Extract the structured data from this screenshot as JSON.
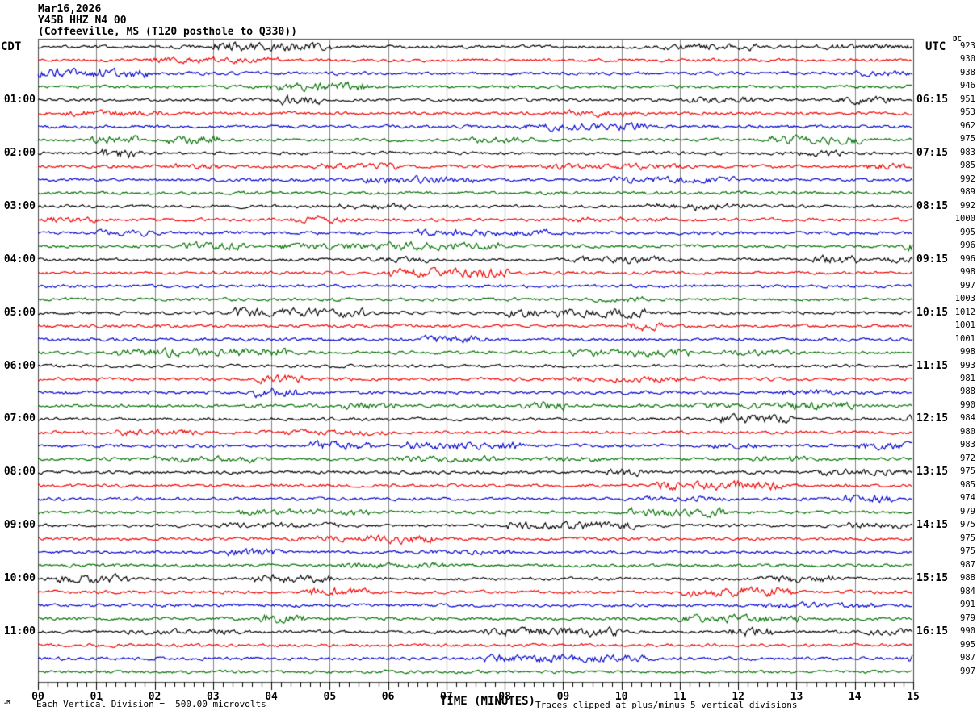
{
  "header": {
    "date": "Mar16,2026",
    "station": "Y45B HHZ N4 00",
    "description": "(Coffeeville, MS (T120 posthole to Q330))",
    "left_zone": "CDT",
    "right_zone": "UTC",
    "dc_header": "DC"
  },
  "footer": {
    "scale_note": "Each Vertical Division =  500.00 microvolts",
    "axis_label": "TIME (MINUTES)",
    "clip_note": "Traces clipped at plus/minus 5 vertical divisions",
    "watermark": ".M"
  },
  "colors": {
    "black": "#000000",
    "red": "#ee0000",
    "blue": "#0000cc",
    "green": "#007000",
    "grid": "#848484",
    "border": "#4a4a4a"
  },
  "chart_data": {
    "type": "line",
    "subtype": "helicorder-seismogram",
    "title": "Y45B HHZ N4 00 (Coffeeville, MS (T120 posthole to Q330)) Mar16,2026",
    "xlabel": "TIME (MINUTES)",
    "x_range": [
      0,
      15
    ],
    "x_tick_labels": [
      "00",
      "01",
      "02",
      "03",
      "04",
      "05",
      "06",
      "07",
      "08",
      "09",
      "10",
      "11",
      "12",
      "13",
      "14",
      "15"
    ],
    "minor_ticks_per_minute": 6,
    "row_duration_minutes": 15,
    "left_time_zone": "CDT",
    "right_time_zone": "UTC",
    "trace_color_cycle": [
      "black",
      "red",
      "blue",
      "green"
    ],
    "scale_note": "Each Vertical Division =  500.00 microvolts",
    "clip_note": "Traces clipped at plus/minus 5 vertical divisions",
    "rows": [
      {
        "color": "black",
        "cdt": "",
        "utc": "",
        "dc": "923"
      },
      {
        "color": "red",
        "cdt": "",
        "utc": "",
        "dc": "930"
      },
      {
        "color": "blue",
        "cdt": "",
        "utc": "",
        "dc": "938"
      },
      {
        "color": "green",
        "cdt": "",
        "utc": "",
        "dc": "946"
      },
      {
        "color": "black",
        "cdt": "01:00",
        "utc": "06:15",
        "dc": "951"
      },
      {
        "color": "red",
        "cdt": "",
        "utc": "",
        "dc": "953"
      },
      {
        "color": "blue",
        "cdt": "",
        "utc": "",
        "dc": "962"
      },
      {
        "color": "green",
        "cdt": "",
        "utc": "",
        "dc": "975"
      },
      {
        "color": "black",
        "cdt": "02:00",
        "utc": "07:15",
        "dc": "983"
      },
      {
        "color": "red",
        "cdt": "",
        "utc": "",
        "dc": "985"
      },
      {
        "color": "blue",
        "cdt": "",
        "utc": "",
        "dc": "992"
      },
      {
        "color": "green",
        "cdt": "",
        "utc": "",
        "dc": "989"
      },
      {
        "color": "black",
        "cdt": "03:00",
        "utc": "08:15",
        "dc": "992"
      },
      {
        "color": "red",
        "cdt": "",
        "utc": "",
        "dc": "1000"
      },
      {
        "color": "blue",
        "cdt": "",
        "utc": "",
        "dc": "995"
      },
      {
        "color": "green",
        "cdt": "",
        "utc": "",
        "dc": "996"
      },
      {
        "color": "black",
        "cdt": "04:00",
        "utc": "09:15",
        "dc": "996"
      },
      {
        "color": "red",
        "cdt": "",
        "utc": "",
        "dc": "998"
      },
      {
        "color": "blue",
        "cdt": "",
        "utc": "",
        "dc": "997"
      },
      {
        "color": "green",
        "cdt": "",
        "utc": "",
        "dc": "1003"
      },
      {
        "color": "black",
        "cdt": "05:00",
        "utc": "10:15",
        "dc": "1012"
      },
      {
        "color": "red",
        "cdt": "",
        "utc": "",
        "dc": "1001"
      },
      {
        "color": "blue",
        "cdt": "",
        "utc": "",
        "dc": "1001"
      },
      {
        "color": "green",
        "cdt": "",
        "utc": "",
        "dc": "998"
      },
      {
        "color": "black",
        "cdt": "06:00",
        "utc": "11:15",
        "dc": "993"
      },
      {
        "color": "red",
        "cdt": "",
        "utc": "",
        "dc": "981"
      },
      {
        "color": "blue",
        "cdt": "",
        "utc": "",
        "dc": "988"
      },
      {
        "color": "green",
        "cdt": "",
        "utc": "",
        "dc": "990"
      },
      {
        "color": "black",
        "cdt": "07:00",
        "utc": "12:15",
        "dc": "984"
      },
      {
        "color": "red",
        "cdt": "",
        "utc": "",
        "dc": "980"
      },
      {
        "color": "blue",
        "cdt": "",
        "utc": "",
        "dc": "983"
      },
      {
        "color": "green",
        "cdt": "",
        "utc": "",
        "dc": "972"
      },
      {
        "color": "black",
        "cdt": "08:00",
        "utc": "13:15",
        "dc": "975"
      },
      {
        "color": "red",
        "cdt": "",
        "utc": "",
        "dc": "985"
      },
      {
        "color": "blue",
        "cdt": "",
        "utc": "",
        "dc": "974"
      },
      {
        "color": "green",
        "cdt": "",
        "utc": "",
        "dc": "979"
      },
      {
        "color": "black",
        "cdt": "09:00",
        "utc": "14:15",
        "dc": "975"
      },
      {
        "color": "red",
        "cdt": "",
        "utc": "",
        "dc": "975"
      },
      {
        "color": "blue",
        "cdt": "",
        "utc": "",
        "dc": "975"
      },
      {
        "color": "green",
        "cdt": "",
        "utc": "",
        "dc": "987"
      },
      {
        "color": "black",
        "cdt": "10:00",
        "utc": "15:15",
        "dc": "988"
      },
      {
        "color": "red",
        "cdt": "",
        "utc": "",
        "dc": "984"
      },
      {
        "color": "blue",
        "cdt": "",
        "utc": "",
        "dc": "991"
      },
      {
        "color": "green",
        "cdt": "",
        "utc": "",
        "dc": "979"
      },
      {
        "color": "black",
        "cdt": "11:00",
        "utc": "16:15",
        "dc": "990"
      },
      {
        "color": "red",
        "cdt": "",
        "utc": "",
        "dc": "995"
      },
      {
        "color": "blue",
        "cdt": "",
        "utc": "",
        "dc": "987"
      },
      {
        "color": "green",
        "cdt": "",
        "utc": "",
        "dc": "997"
      }
    ]
  }
}
